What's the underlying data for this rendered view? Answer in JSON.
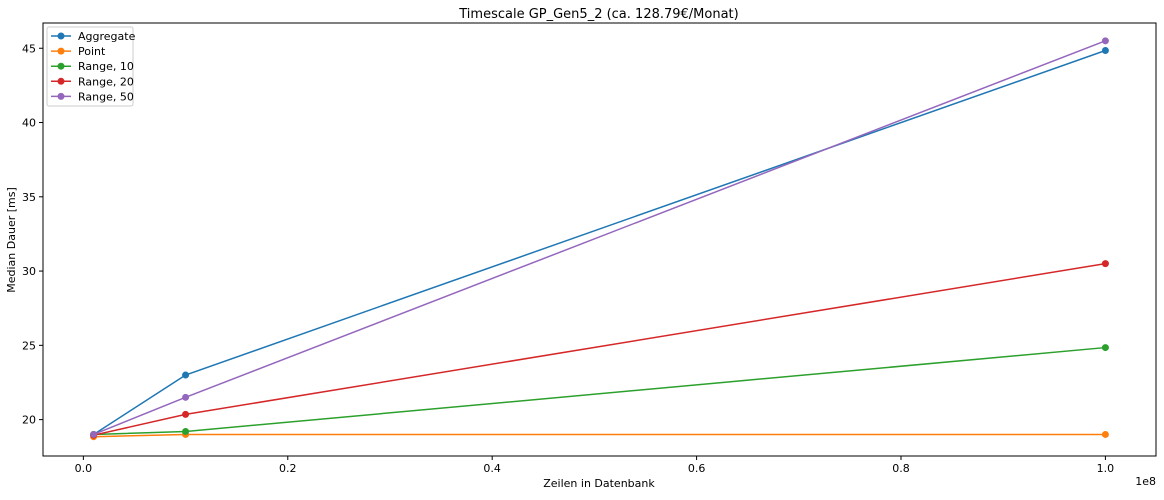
{
  "chart_data": {
    "type": "line",
    "title": "Timescale GP_Gen5_2 (ca. 128.79€/Monat)",
    "xlabel": "Zeilen in Datenbank",
    "ylabel": "Median Dauer [ms]",
    "x_offset_label": "1e8",
    "x": [
      0.01,
      0.1,
      1.0
    ],
    "xlim": [
      -0.0395,
      1.0495
    ],
    "ylim": [
      17.55,
      46.7
    ],
    "xticks": [
      0.0,
      0.2,
      0.4,
      0.6,
      0.8,
      1.0
    ],
    "xtick_labels": [
      "0.0",
      "0.2",
      "0.4",
      "0.6",
      "0.8",
      "1.0"
    ],
    "yticks": [
      20,
      25,
      30,
      35,
      40,
      45
    ],
    "ytick_labels": [
      "20",
      "25",
      "30",
      "35",
      "40",
      "45"
    ],
    "grid": false,
    "legend_position": "top-left",
    "series": [
      {
        "name": "Aggregate",
        "color": "#1f77b4",
        "values": [
          19.0,
          23.0,
          44.85
        ]
      },
      {
        "name": "Point",
        "color": "#ff7f0e",
        "values": [
          18.85,
          19.0,
          19.0
        ]
      },
      {
        "name": "Range, 10",
        "color": "#2ca02c",
        "values": [
          19.0,
          19.2,
          24.85
        ]
      },
      {
        "name": "Range, 20",
        "color": "#d62728",
        "values": [
          18.95,
          20.35,
          30.5
        ]
      },
      {
        "name": "Range, 50",
        "color": "#9467bd",
        "values": [
          19.0,
          21.5,
          45.5
        ]
      }
    ]
  }
}
